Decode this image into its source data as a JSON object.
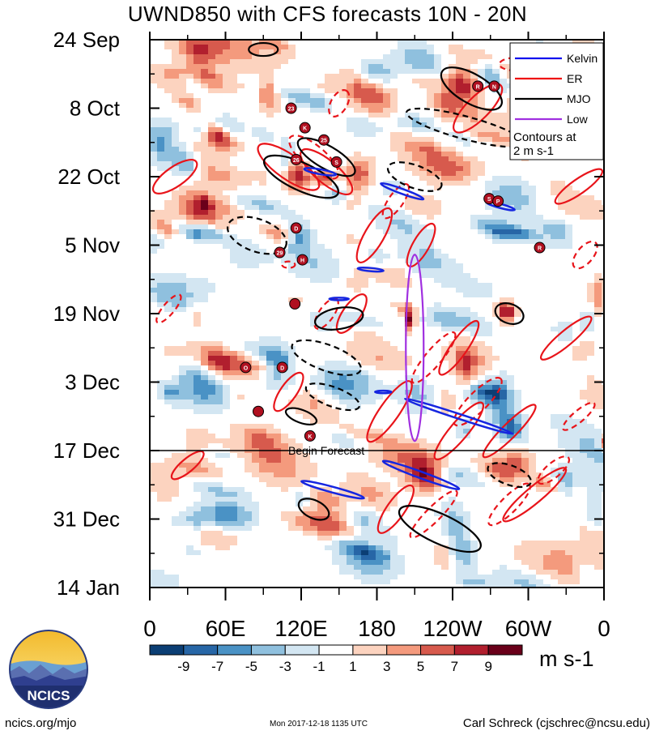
{
  "chart_data": {
    "type": "heatmap",
    "title": "UWND850 with CFS forecasts  10N - 20N",
    "y_axis": {
      "labels": [
        "24 Sep",
        "8 Oct",
        "22 Oct",
        "5 Nov",
        "19 Nov",
        "3 Dec",
        "17 Dec",
        "31 Dec",
        "14 Jan"
      ],
      "day_offsets": [
        0,
        14,
        28,
        42,
        56,
        70,
        84,
        98,
        112
      ],
      "range_days": [
        0,
        112
      ]
    },
    "x_axis": {
      "labels": [
        "0",
        "60E",
        "120E",
        "180",
        "120W",
        "60W",
        "0"
      ],
      "longitudes": [
        0,
        60,
        120,
        180,
        240,
        300,
        360
      ],
      "range": [
        0,
        360
      ]
    },
    "colorbar": {
      "levels": [
        -9,
        -7,
        -5,
        -3,
        -1,
        1,
        3,
        5,
        7,
        9
      ],
      "level_labels": [
        "-9",
        "-7",
        "-5",
        "-3",
        "-1",
        "1",
        "3",
        "5",
        "7",
        "9"
      ],
      "colors": [
        "#0b3e74",
        "#2766a6",
        "#4a92c5",
        "#8fc0de",
        "#d3e6f2",
        "#ffffff",
        "#fcd3bf",
        "#f49a7d",
        "#d75a4d",
        "#b11f2e",
        "#6a001a"
      ],
      "units": "m s-1"
    },
    "legend": {
      "placement": "top-right",
      "entries": [
        {
          "name": "Kelvin",
          "color": "#1010ee"
        },
        {
          "name": "ER",
          "color": "#ee1010"
        },
        {
          "name": "MJO",
          "color": "#000000"
        },
        {
          "name": "Low",
          "color": "#a030e0"
        }
      ],
      "note": "Contours at\n2 m s-1"
    },
    "annotation": "Begin Forecast",
    "forecast_start_day": 84,
    "storm_markers": [
      {
        "label": "23",
        "lon": 112,
        "day": 14
      },
      {
        "label": "K",
        "lon": 123,
        "day": 18
      },
      {
        "label": "25",
        "lon": 138,
        "day": 20.5
      },
      {
        "label": "26",
        "lon": 116,
        "day": 24.5
      },
      {
        "label": "S",
        "lon": 148,
        "day": 25
      },
      {
        "label": "D",
        "lon": 116,
        "day": 38.5
      },
      {
        "label": "29",
        "lon": 103,
        "day": 43.5
      },
      {
        "label": "H",
        "lon": 121,
        "day": 45
      },
      {
        "label": "",
        "lon": 115,
        "day": 54
      },
      {
        "label": "O",
        "lon": 76,
        "day": 67
      },
      {
        "label": "D",
        "lon": 105,
        "day": 67
      },
      {
        "label": "",
        "lon": 86,
        "day": 76
      },
      {
        "label": "K",
        "lon": 127,
        "day": 81
      },
      {
        "label": "R",
        "lon": 260,
        "day": 9.5
      },
      {
        "label": "N",
        "lon": 273,
        "day": 9.5
      },
      {
        "label": "S",
        "lon": 269,
        "day": 32.5
      },
      {
        "label": "P",
        "lon": 276,
        "day": 33
      },
      {
        "label": "R",
        "lon": 309,
        "day": 42.5
      }
    ]
  },
  "logo": {
    "text": "NCICS"
  },
  "footer": {
    "left": "ncics.org/mjo",
    "middle": "Mon 2017-12-18 1135 UTC",
    "right": "Carl Schreck (cjschrec@ncsu.edu)"
  }
}
